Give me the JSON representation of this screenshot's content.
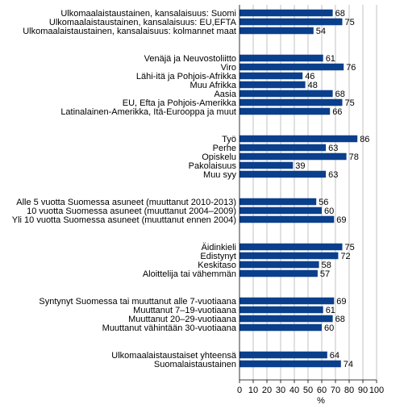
{
  "chart_data": {
    "type": "bar",
    "orientation": "horizontal",
    "xlabel": "%",
    "xlim": [
      0,
      100
    ],
    "xticks": [
      "0",
      "10",
      "20",
      "30",
      "40",
      "50",
      "60",
      "70",
      "80",
      "90",
      "100"
    ],
    "grid": true,
    "bar_color": "#0a3f8c",
    "categories": [
      "Ulkomaalaistaustainen, kansalaisuus: Suomi",
      "Ulkomaalaistaustainen, kansalaisuus: EU,EFTA",
      "Ulkomaalaistaustainen, kansalaisuus: kolmannet maat",
      "Venäjä ja Neuvostoliitto",
      "Viro",
      "Lähi-itä ja Pohjois-Afrikka",
      "Muu Afrikka",
      "Aasia",
      "EU, Efta ja Pohjois-Amerikka",
      "Latinalainen-Amerikka, Itä-Eurooppa ja muut",
      "Työ",
      "Perhe",
      "Opiskelu",
      "Pakolaisuus",
      "Muu syy",
      "Alle 5 vuotta Suomessa asuneet (muuttanut 2010-2013)",
      "10 vuotta Suomessa asuneet (muuttanut 2004–2009)",
      "Yli 10 vuotta Suomessa asuneet (muuttanut ennen 2004)",
      "Äidinkieli",
      "Edistynyt",
      "Keskitaso",
      "Aloittelija tai vähemmän",
      "Syntynyt Suomessa tai muuttanut alle 7-vuotiaana",
      "Muuttanut 7–19-vuotiaana",
      "Muuttanut 20–29-vuotiaana",
      "Muuttanut vähintään 30-vuotiaana",
      "Ulkomaalaistaustaiset yhteensä",
      "Suomalaistaustainen"
    ],
    "values": [
      68,
      75,
      54,
      61,
      76,
      46,
      48,
      68,
      75,
      66,
      86,
      63,
      78,
      39,
      63,
      56,
      60,
      69,
      75,
      72,
      58,
      57,
      69,
      61,
      68,
      60,
      64,
      74
    ],
    "value_labels": [
      "68",
      "75",
      "54",
      "61",
      "76",
      "46",
      "48",
      "68",
      "75",
      "66",
      "86",
      "63",
      "78",
      "39",
      "63",
      "56",
      "60",
      "69",
      "75",
      "72",
      "58",
      "57",
      "69",
      "61",
      "68",
      "60",
      "64",
      "74"
    ],
    "group_sizes": [
      3,
      7,
      5,
      3,
      4,
      4,
      2
    ]
  }
}
